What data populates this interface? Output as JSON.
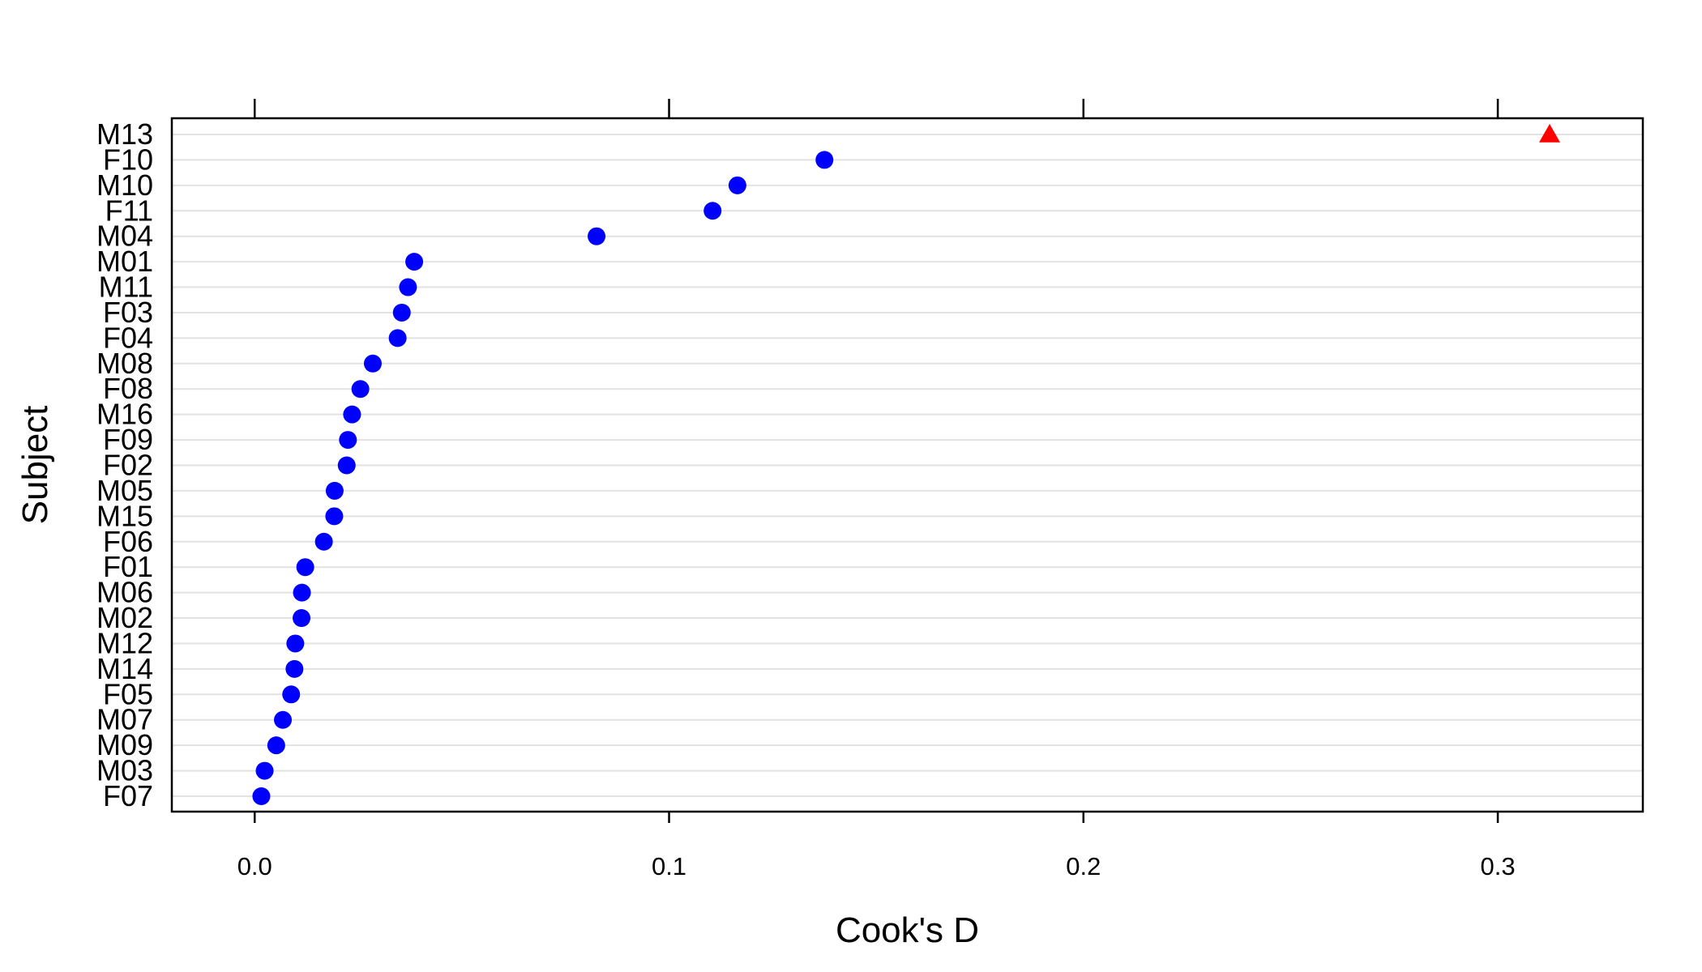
{
  "chart_data": {
    "type": "scatter",
    "title": "",
    "xlabel": "Cook's D",
    "ylabel": "Subject",
    "xlim": [
      -0.02,
      0.335
    ],
    "xticks": [
      "0.0",
      "0.1",
      "0.2",
      "0.3"
    ],
    "xtick_values": [
      0.0,
      0.1,
      0.2,
      0.3
    ],
    "grid": true,
    "categories": [
      "M13",
      "F10",
      "M10",
      "F11",
      "M04",
      "M01",
      "M11",
      "F03",
      "F04",
      "M08",
      "F08",
      "M16",
      "F09",
      "F02",
      "M05",
      "M15",
      "F06",
      "F01",
      "M06",
      "M02",
      "M12",
      "M14",
      "F05",
      "M07",
      "M09",
      "M03",
      "F07"
    ],
    "values": [
      0.3125,
      0.1375,
      0.1165,
      0.1105,
      0.0825,
      0.0385,
      0.037,
      0.0355,
      0.0345,
      0.0285,
      0.0255,
      0.0235,
      0.0225,
      0.0222,
      0.0193,
      0.0192,
      0.0167,
      0.0122,
      0.0114,
      0.0113,
      0.0098,
      0.0096,
      0.0088,
      0.0068,
      0.0052,
      0.0024,
      0.0016
    ],
    "highlight_index": 0,
    "colors": {
      "point": "#0000ff",
      "highlight": "#ff0000",
      "grid": "#e2e2e2",
      "axis": "#000000"
    }
  }
}
